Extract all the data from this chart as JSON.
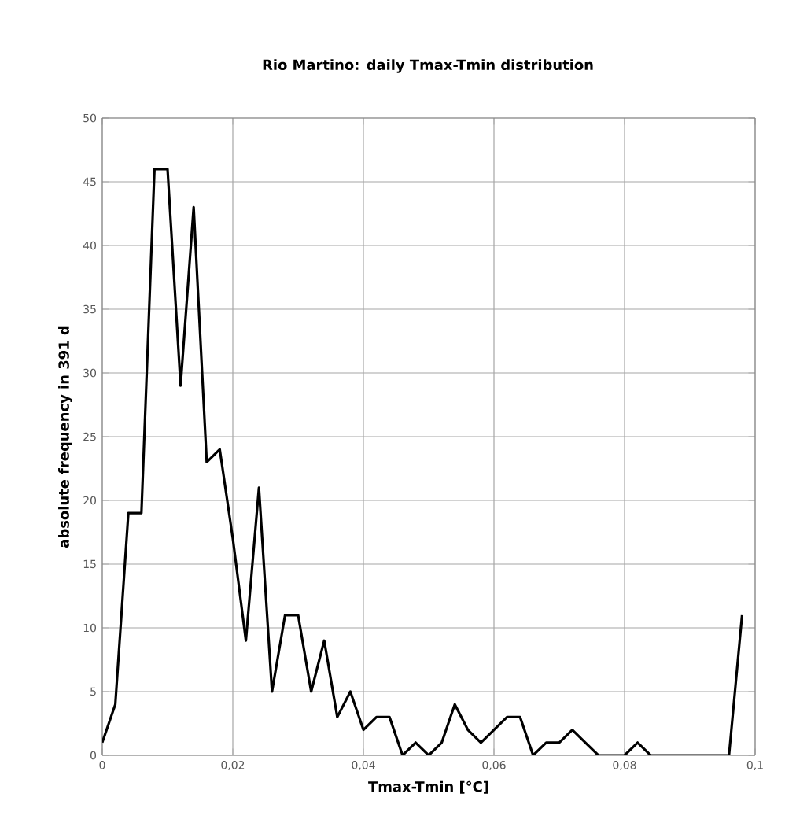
{
  "chart_data": {
    "type": "line",
    "title": "Rio Martino: daily Tmax-Tmin distribution",
    "xlabel": "Tmax-Tmin [°C]",
    "ylabel": "absolute frequency in 391 d",
    "x": [
      0,
      0.002,
      0.004,
      0.006,
      0.008,
      0.01,
      0.012,
      0.014,
      0.016,
      0.018,
      0.02,
      0.022,
      0.024,
      0.026,
      0.028,
      0.03,
      0.032,
      0.034,
      0.036,
      0.038,
      0.04,
      0.042,
      0.044,
      0.046,
      0.048,
      0.05,
      0.052,
      0.054,
      0.056,
      0.058,
      0.06,
      0.062,
      0.064,
      0.066,
      0.068,
      0.07,
      0.072,
      0.074,
      0.076,
      0.078,
      0.08,
      0.082,
      0.084,
      0.086,
      0.088,
      0.09,
      0.092,
      0.094,
      0.096,
      0.098
    ],
    "values": [
      1,
      4,
      19,
      19,
      46,
      46,
      29,
      43,
      23,
      24,
      17,
      9,
      21,
      5,
      11,
      11,
      5,
      9,
      3,
      5,
      2,
      3,
      3,
      0,
      1,
      0,
      1,
      4,
      2,
      1,
      2,
      3,
      3,
      0,
      1,
      1,
      2,
      1,
      0,
      0,
      0,
      1,
      0,
      0,
      0,
      0,
      0,
      0,
      0,
      11
    ],
    "color": "#000000",
    "marker": "none",
    "line_style": "solid",
    "grid": true,
    "xlim": [
      0,
      0.1
    ],
    "ylim": [
      0,
      50
    ],
    "xticks": [
      0,
      {
        "value": 0.02,
        "label": "0,02"
      },
      {
        "value": 0.04,
        "label": "0,04"
      },
      {
        "value": 0.06,
        "label": "0,06"
      },
      {
        "value": 0.08,
        "label": "0,08"
      },
      {
        "value": 0.1,
        "label": "0,1"
      }
    ],
    "yticks": [
      0,
      5,
      10,
      15,
      20,
      25,
      30,
      35,
      40,
      45,
      50
    ]
  }
}
